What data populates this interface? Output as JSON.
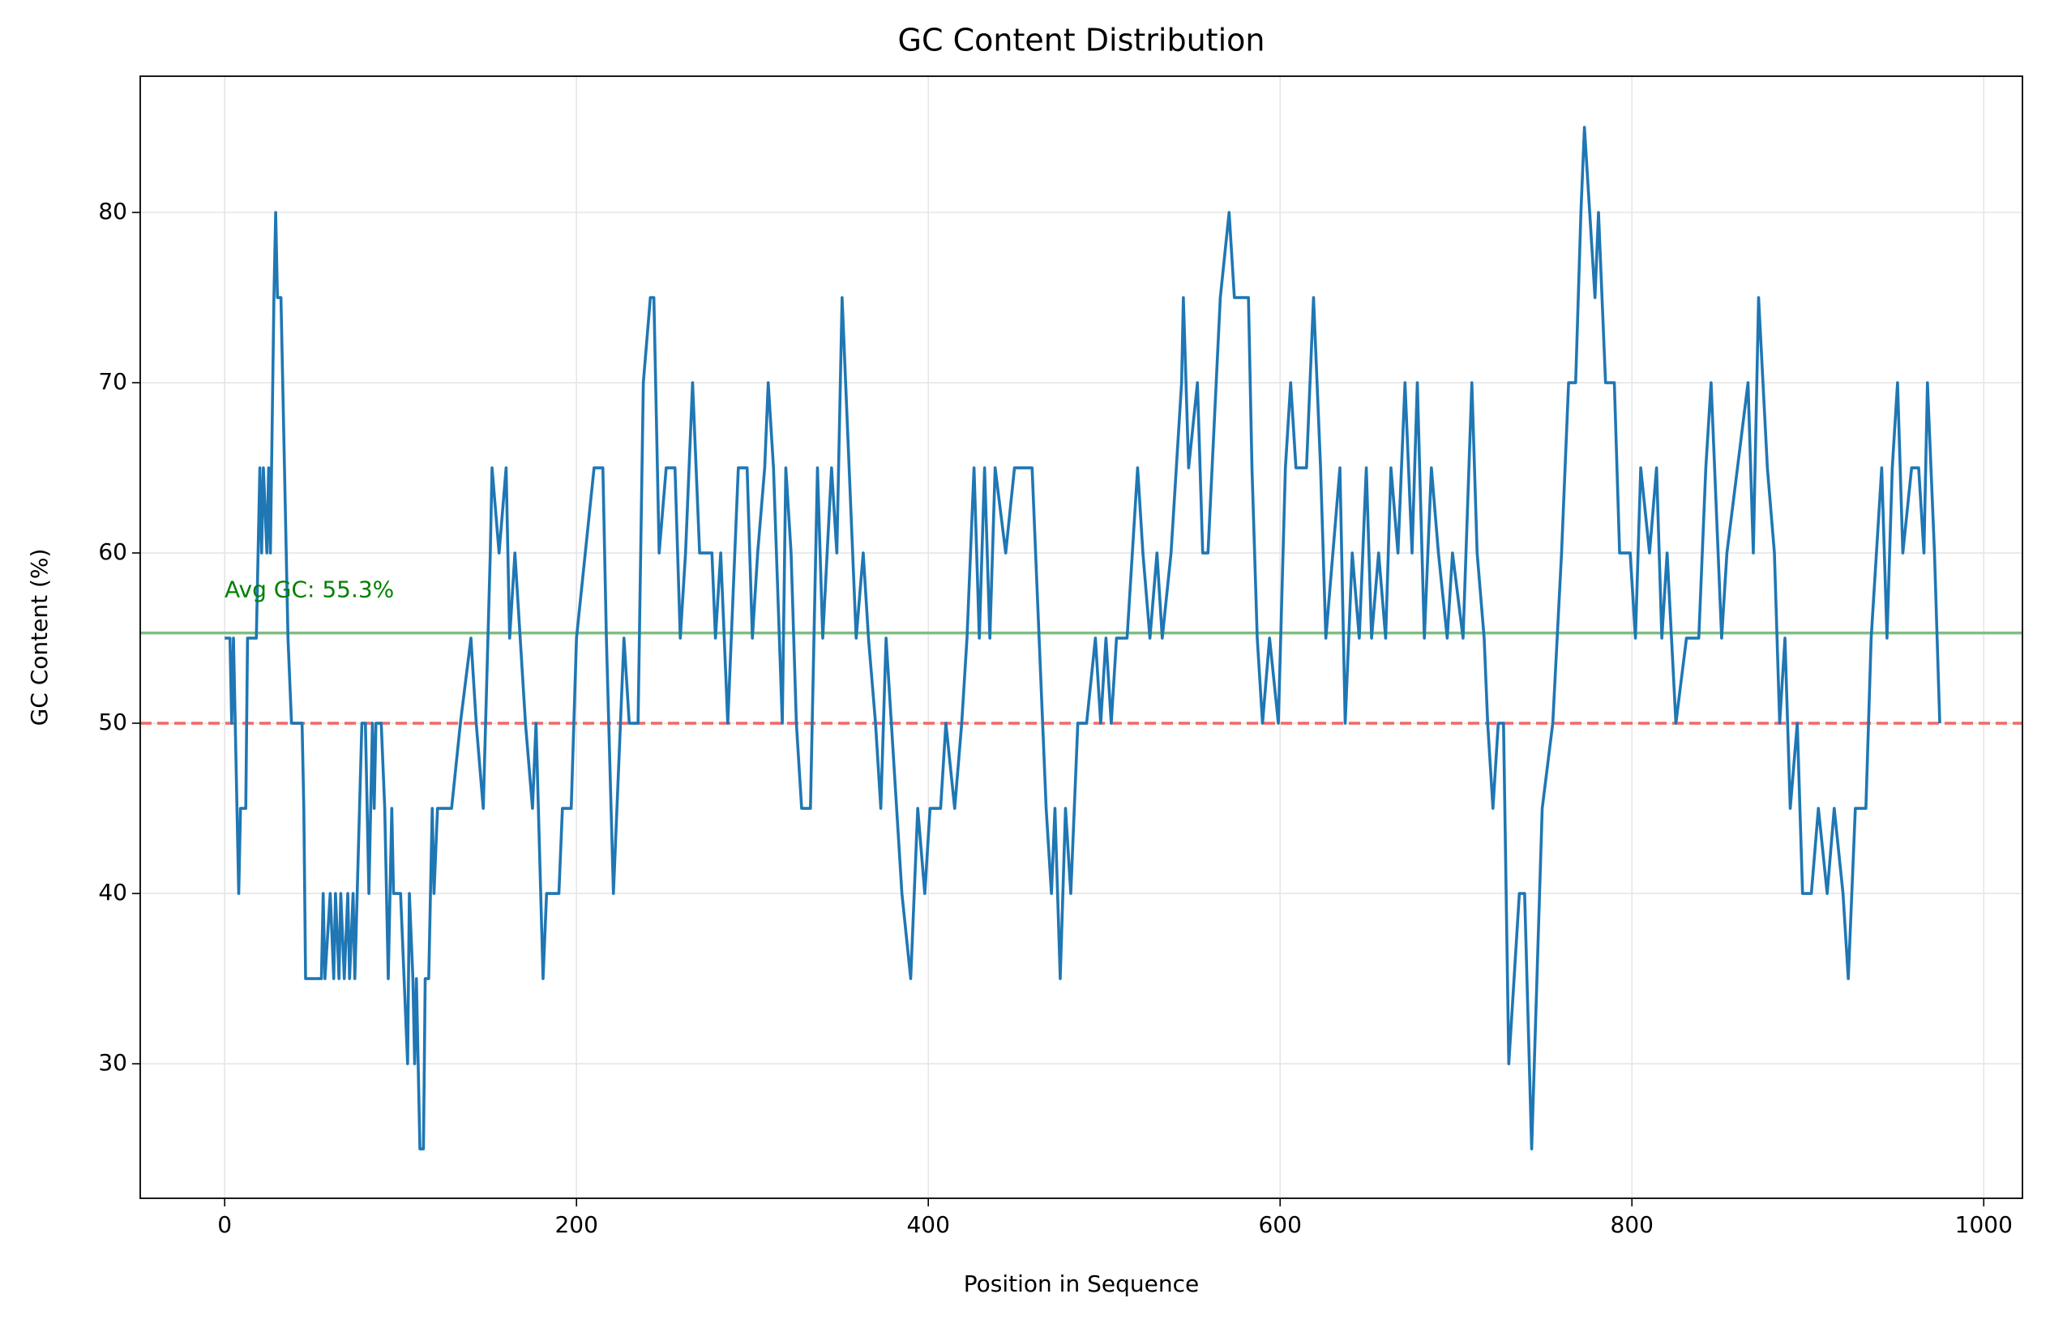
{
  "chart_data": {
    "type": "line",
    "title": "GC Content Distribution",
    "x_label": "Position in Sequence",
    "y_label": "GC Content (%)",
    "xlim": [
      -48,
      1022
    ],
    "ylim": [
      22.1,
      88
    ],
    "xticks": [
      0,
      200,
      400,
      600,
      800,
      1000
    ],
    "yticks": [
      30,
      40,
      50,
      60,
      70,
      80
    ],
    "grid": true,
    "threshold": {
      "value": 50,
      "color": "#f46a6a"
    },
    "average": {
      "value": 55.3,
      "color": "#80bf80",
      "label": "Avg GC: 55.3%",
      "label_color": "#008000"
    },
    "series": [
      {
        "name": "GC Content",
        "color": "#1f77b4",
        "x": [
          0,
          3,
          4,
          5,
          7,
          8,
          9,
          12,
          13,
          18,
          20,
          21,
          22,
          24,
          25,
          26,
          28,
          29,
          30,
          32,
          35,
          36,
          38,
          44,
          45,
          46,
          55,
          56,
          57,
          60,
          62,
          63,
          65,
          66,
          68,
          70,
          71,
          73,
          74,
          78,
          80,
          81,
          82,
          84,
          85,
          86,
          89,
          91,
          93,
          95,
          96,
          100,
          102,
          104,
          105,
          107,
          108,
          109,
          111,
          113,
          114,
          116,
          118,
          119,
          121,
          129,
          134,
          140,
          143,
          147,
          151,
          152,
          156,
          160,
          162,
          165,
          168,
          171,
          175,
          177,
          181,
          183,
          190,
          192,
          197,
          200,
          210,
          215,
          217,
          221,
          227,
          230,
          235,
          238,
          242,
          244,
          247,
          251,
          256,
          259,
          262,
          266,
          270,
          277,
          279,
          282,
          286,
          288,
          292,
          297,
          300,
          303,
          307,
          309,
          312,
          317,
          319,
          322,
          325,
          328,
          333,
          337,
          340,
          345,
          348,
          351,
          355,
          359,
          363,
          366,
          370,
          373,
          376,
          379,
          382,
          385,
          390,
          394,
          398,
          401,
          407,
          410,
          415,
          419,
          422,
          426,
          429,
          432,
          435,
          438,
          444,
          449,
          459,
          463,
          467,
          470,
          472,
          475,
          478,
          481,
          485,
          490,
          495,
          498,
          501,
          504,
          507,
          513,
          516,
          519,
          522,
          526,
          530,
          533,
          538,
          544,
          545,
          548,
          553,
          556,
          559,
          566,
          571,
          574,
          582,
          584,
          587,
          590,
          594,
          599,
          603,
          606,
          609,
          615,
          619,
          623,
          626,
          630,
          634,
          637,
          641,
          645,
          649,
          652,
          656,
          660,
          663,
          667,
          671,
          675,
          678,
          682,
          686,
          690,
          695,
          698,
          704,
          709,
          712,
          716,
          718,
          721,
          724,
          727,
          730,
          733,
          736,
          739,
          743,
          746,
          749,
          755,
          760,
          764,
          768,
          771,
          773,
          776,
          779,
          781,
          785,
          790,
          793,
          799,
          802,
          805,
          810,
          814,
          817,
          820,
          825,
          831,
          838,
          842,
          845,
          849,
          851,
          854,
          860,
          866,
          869,
          872,
          877,
          881,
          884,
          887,
          890,
          894,
          897,
          902,
          906,
          911,
          915,
          920,
          923,
          927,
          933,
          936,
          939,
          942,
          945,
          948,
          951,
          954,
          959,
          963,
          966,
          968,
          972,
          975
        ],
        "values": [
          55,
          55,
          50,
          55,
          45,
          40,
          45,
          45,
          55,
          55,
          65,
          60,
          65,
          60,
          65,
          60,
          75,
          80,
          75,
          75,
          60,
          55,
          50,
          50,
          45,
          35,
          35,
          40,
          35,
          40,
          35,
          40,
          35,
          40,
          35,
          40,
          35,
          40,
          35,
          50,
          50,
          45,
          40,
          50,
          45,
          50,
          50,
          45,
          35,
          45,
          40,
          40,
          35,
          30,
          40,
          35,
          30,
          35,
          25,
          25,
          35,
          35,
          45,
          40,
          45,
          45,
          50,
          55,
          50,
          45,
          60,
          65,
          60,
          65,
          55,
          60,
          55,
          50,
          45,
          50,
          35,
          40,
          40,
          45,
          45,
          55,
          65,
          65,
          55,
          40,
          55,
          50,
          50,
          70,
          75,
          75,
          60,
          65,
          65,
          55,
          60,
          70,
          60,
          60,
          55,
          60,
          50,
          55,
          65,
          65,
          55,
          60,
          65,
          70,
          65,
          50,
          65,
          60,
          50,
          45,
          45,
          65,
          55,
          65,
          60,
          75,
          65,
          55,
          60,
          55,
          50,
          45,
          55,
          50,
          45,
          40,
          35,
          45,
          40,
          45,
          45,
          50,
          45,
          50,
          55,
          65,
          55,
          65,
          55,
          65,
          60,
          65,
          65,
          55,
          45,
          40,
          45,
          35,
          45,
          40,
          50,
          50,
          55,
          50,
          55,
          50,
          55,
          55,
          60,
          65,
          60,
          55,
          60,
          55,
          60,
          70,
          75,
          65,
          70,
          60,
          60,
          75,
          80,
          75,
          75,
          65,
          55,
          50,
          55,
          50,
          65,
          70,
          65,
          65,
          75,
          65,
          55,
          60,
          65,
          50,
          60,
          55,
          65,
          55,
          60,
          55,
          65,
          60,
          70,
          60,
          70,
          55,
          65,
          60,
          55,
          60,
          55,
          70,
          60,
          55,
          50,
          45,
          50,
          50,
          30,
          35,
          40,
          40,
          25,
          35,
          45,
          50,
          60,
          70,
          70,
          80,
          85,
          80,
          75,
          80,
          70,
          70,
          60,
          60,
          55,
          65,
          60,
          65,
          55,
          60,
          50,
          55,
          55,
          65,
          70,
          60,
          55,
          60,
          65,
          70,
          60,
          75,
          65,
          60,
          50,
          55,
          45,
          50,
          40,
          40,
          45,
          40,
          45,
          40,
          35,
          45,
          45,
          55,
          60,
          65,
          55,
          65,
          70,
          60,
          65,
          65,
          60,
          70,
          60,
          50
        ]
      }
    ]
  }
}
